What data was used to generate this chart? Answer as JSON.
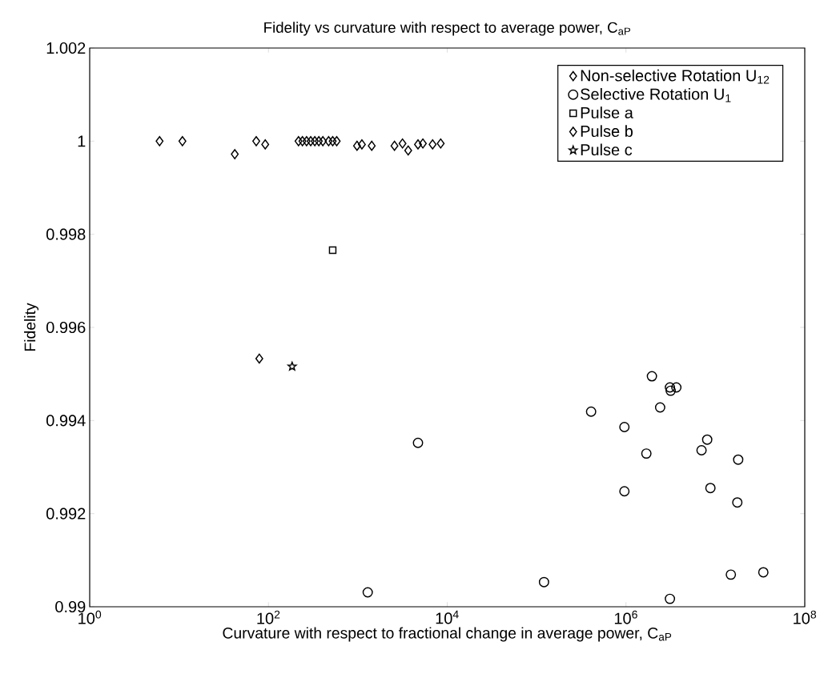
{
  "chart_data": {
    "type": "scatter",
    "title": "Fidelity vs curvature with respect to average power, C$_{aP}$",
    "xlabel": "Curvature with respect to fractional change in average power, C$_{aP}$",
    "ylabel": "Fidelity",
    "log": "x",
    "xlim": [
      1,
      100000000
    ],
    "ylim": [
      0.99,
      1.002
    ],
    "xticks": [
      {
        "value": 1,
        "label": "10$^{0}$"
      },
      {
        "value": 100,
        "label": "10$^{2}$"
      },
      {
        "value": 10000,
        "label": "10$^{4}$"
      },
      {
        "value": 1000000,
        "label": "10$^{6}$"
      },
      {
        "value": 100000000,
        "label": "10$^{8}$"
      }
    ],
    "yticks": [
      0.99,
      0.992,
      0.994,
      0.996,
      0.998,
      {
        "value": 1,
        "label": "1"
      },
      1.002
    ],
    "grid": false,
    "legend": "top right",
    "series": [
      {
        "name": "Non-selective Rotation U$_{12}$",
        "color": "#000000",
        "marker": "diamond",
        "x": [
          6.05,
          10.9,
          42,
          73,
          92,
          217,
          240,
          267,
          297,
          330,
          366,
          406,
          471,
          523,
          580,
          979,
          1110,
          1430,
          2570,
          3160,
          3660,
          4710,
          5340,
          6860,
          8450
        ],
        "values": [
          1.0,
          1.0,
          0.99972,
          1.0,
          0.99993,
          1.0,
          1.0,
          1.0,
          1.0,
          1.0,
          1.0,
          1.0,
          1.0,
          1.0,
          1.0,
          0.9999,
          0.99993,
          0.9999,
          0.9999,
          0.99995,
          0.9998,
          0.99993,
          0.99995,
          0.99993,
          0.99995
        ]
      },
      {
        "name": "Selective Rotation U$_{1}$",
        "color": "#000000",
        "marker": "circle",
        "x": [
          1950000,
          3100000,
          3660000,
          3160000,
          2410000,
          960000,
          8100000,
          7000000,
          1690000,
          18000000,
          960000,
          8800000,
          17600000,
          14900000,
          34400000,
          3100000,
          407000,
          4710,
          1290,
          121000
        ],
        "values": [
          0.99495,
          0.99471,
          0.99471,
          0.99464,
          0.99428,
          0.99386,
          0.99359,
          0.99336,
          0.99329,
          0.99316,
          0.99248,
          0.99255,
          0.99224,
          0.99069,
          0.99074,
          0.99017,
          0.99419,
          0.99352,
          0.99031,
          0.99053
        ]
      },
      {
        "name": "Pulse a",
        "color": "#000000",
        "marker": "square",
        "x": [
          523
        ],
        "values": [
          0.99766
        ]
      },
      {
        "name": "Pulse b",
        "color": "#000000",
        "marker": "diamond",
        "x": [
          79
        ],
        "values": [
          0.99533
        ]
      },
      {
        "name": "Pulse c",
        "color": "#000000",
        "marker": "star",
        "x": [
          184
        ],
        "values": [
          0.99516
        ]
      }
    ]
  }
}
